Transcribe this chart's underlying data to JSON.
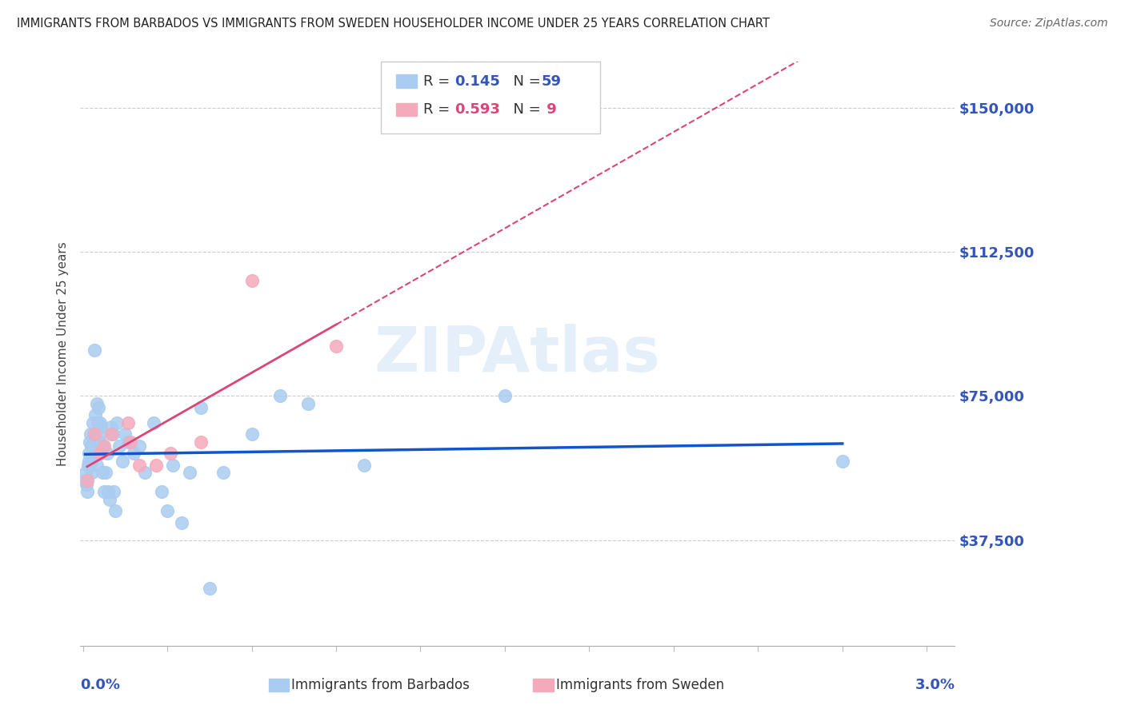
{
  "title": "IMMIGRANTS FROM BARBADOS VS IMMIGRANTS FROM SWEDEN HOUSEHOLDER INCOME UNDER 25 YEARS CORRELATION CHART",
  "source": "Source: ZipAtlas.com",
  "ylabel": "Householder Income Under 25 years",
  "ytick_labels": [
    "$37,500",
    "$75,000",
    "$112,500",
    "$150,000"
  ],
  "ytick_values": [
    37500,
    75000,
    112500,
    150000
  ],
  "ymin": 10000,
  "ymax": 162000,
  "xmin": -0.0001,
  "xmax": 0.031,
  "watermark": "ZIPAtlas",
  "barbados_color": "#aaccf0",
  "sweden_color": "#f5aabb",
  "trendline_barbados_color": "#1155cc",
  "trendline_sweden_color": "#dd4477",
  "label_color": "#3355bb",
  "barbados_x": [
    8e-05,
    0.0001,
    0.00012,
    0.00015,
    0.00018,
    0.0002,
    0.00022,
    0.00025,
    0.00028,
    0.0003,
    0.0003,
    0.00032,
    0.00035,
    0.00038,
    0.0004,
    0.00042,
    0.00045,
    0.00048,
    0.0005,
    0.00052,
    0.00055,
    0.00058,
    0.0006,
    0.0006,
    0.00065,
    0.00068,
    0.0007,
    0.00075,
    0.0008,
    0.00085,
    0.0009,
    0.00095,
    0.001,
    0.00105,
    0.0011,
    0.00115,
    0.0012,
    0.0013,
    0.0014,
    0.0015,
    0.0016,
    0.0018,
    0.002,
    0.0022,
    0.0025,
    0.0028,
    0.003,
    0.0032,
    0.0035,
    0.0038,
    0.0042,
    0.0045,
    0.005,
    0.006,
    0.007,
    0.008,
    0.01,
    0.015,
    0.027
  ],
  "barbados_y": [
    53000,
    55000,
    52000,
    50000,
    57000,
    60000,
    58000,
    63000,
    65000,
    62000,
    58000,
    55000,
    68000,
    65000,
    60000,
    87000,
    70000,
    57000,
    73000,
    68000,
    72000,
    65000,
    68000,
    63000,
    67000,
    62000,
    55000,
    50000,
    55000,
    60000,
    50000,
    48000,
    67000,
    65000,
    50000,
    45000,
    68000,
    62000,
    58000,
    65000,
    63000,
    60000,
    62000,
    55000,
    68000,
    50000,
    45000,
    57000,
    42000,
    55000,
    72000,
    25000,
    55000,
    65000,
    75000,
    73000,
    57000,
    75000,
    58000
  ],
  "sweden_x": [
    0.00015,
    0.0004,
    0.0006,
    0.00075,
    0.001,
    0.0016,
    0.0017,
    0.002,
    0.0026,
    0.0031,
    0.0042,
    0.006,
    0.009
  ],
  "sweden_y": [
    53000,
    65000,
    60000,
    62000,
    65000,
    68000,
    63000,
    57000,
    57000,
    60000,
    63000,
    105000,
    88000
  ]
}
